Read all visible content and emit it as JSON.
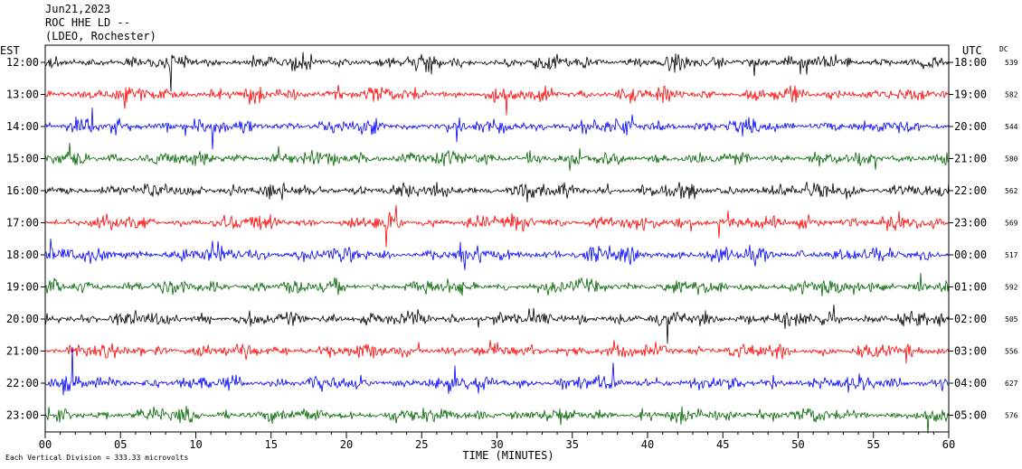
{
  "header": {
    "date": "Jun21,2023",
    "station": "ROC HHE LD --",
    "network": "(LDEO, Rochester)"
  },
  "chart_data": {
    "type": "line",
    "title": "Jun21,2023 ROC HHE LD -- (LDEO, Rochester)",
    "xlabel": "TIME (MINUTES)",
    "left_axis_label": "EST",
    "right_axis_label": "UTC",
    "dc_label": "DC",
    "xlim": [
      0,
      60
    ],
    "x_ticks": [
      "00",
      "05",
      "10",
      "15",
      "20",
      "25",
      "30",
      "35",
      "40",
      "45",
      "50",
      "55",
      "60"
    ],
    "grid": false,
    "rows": [
      {
        "est": "12:00",
        "utc": "18:00",
        "dc": "539",
        "color": "#000000"
      },
      {
        "est": "13:00",
        "utc": "19:00",
        "dc": "582",
        "color": "#ff0000"
      },
      {
        "est": "14:00",
        "utc": "20:00",
        "dc": "544",
        "color": "#0000ff"
      },
      {
        "est": "15:00",
        "utc": "21:00",
        "dc": "580",
        "color": "#006400"
      },
      {
        "est": "16:00",
        "utc": "22:00",
        "dc": "562",
        "color": "#000000"
      },
      {
        "est": "17:00",
        "utc": "23:00",
        "dc": "569",
        "color": "#ff0000"
      },
      {
        "est": "18:00",
        "utc": "00:00",
        "dc": "517",
        "color": "#0000ff"
      },
      {
        "est": "19:00",
        "utc": "01:00",
        "dc": "592",
        "color": "#006400"
      },
      {
        "est": "20:00",
        "utc": "02:00",
        "dc": "505",
        "color": "#000000"
      },
      {
        "est": "21:00",
        "utc": "03:00",
        "dc": "556",
        "color": "#ff0000"
      },
      {
        "est": "22:00",
        "utc": "04:00",
        "dc": "627",
        "color": "#0000ff"
      },
      {
        "est": "23:00",
        "utc": "05:00",
        "dc": "576",
        "color": "#006400"
      }
    ],
    "footnote": "Each Vertical Division =  333.33 microvolts"
  }
}
